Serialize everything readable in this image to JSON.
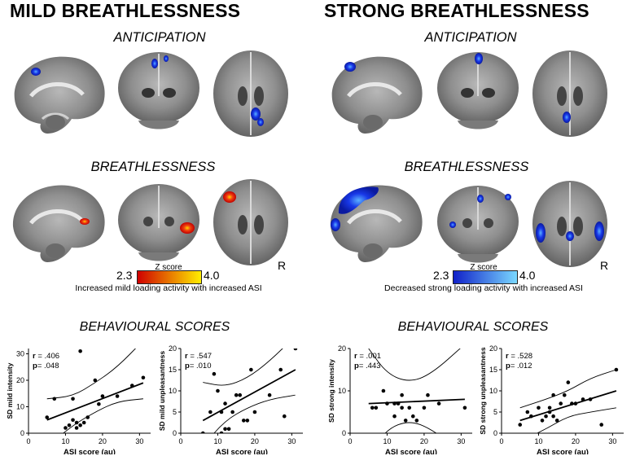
{
  "left": {
    "title": "MILD BREATHLESSNESS",
    "anticipation": "ANTICIPATION",
    "breathlessness": "BREATHLESSNESS",
    "colorbar": {
      "label": "Z score",
      "min": "2.3",
      "max": "4.0",
      "caption": "Increased mild loading activity with increased ASI",
      "from_color": "#d00000",
      "to_color": "#ffee00"
    },
    "r_marker": "R",
    "behavioural": "BEHAVIOURAL SCORES"
  },
  "right": {
    "title": "STRONG BREATHLESSNESS",
    "anticipation": "ANTICIPATION",
    "breathlessness": "BREATHLESSNESS",
    "colorbar": {
      "label": "Z score",
      "min": "2.3",
      "max": "4.0",
      "caption": "Decreased strong loading activity with increased ASI",
      "from_color": "#1020c8",
      "to_color": "#7ad8ff"
    },
    "r_marker": "R",
    "behavioural": "BEHAVIOURAL SCORES"
  },
  "colors": {
    "activation_red": "#e02010",
    "activation_blue": "#1838e8",
    "brain_gray": "#8a8a8a"
  },
  "chart_data": [
    {
      "type": "scatter",
      "xlabel": "ASI score (au)",
      "ylabel": "SD mild intensity",
      "xlim": [
        0,
        33
      ],
      "ylim": [
        0,
        32
      ],
      "xticks": [
        0,
        10,
        20,
        30
      ],
      "yticks": [
        0,
        10,
        20,
        30
      ],
      "r_label": "r",
      "p_label": "p",
      "r_value": "= .406",
      "p_value": "= .048",
      "points": [
        [
          5,
          6
        ],
        [
          7,
          13
        ],
        [
          10,
          2
        ],
        [
          11,
          3
        ],
        [
          12,
          5
        ],
        [
          12,
          13
        ],
        [
          13,
          2
        ],
        [
          13,
          4
        ],
        [
          14,
          31
        ],
        [
          15,
          4
        ],
        [
          16,
          6
        ],
        [
          18,
          20
        ],
        [
          19,
          11
        ],
        [
          20,
          14
        ],
        [
          24,
          14
        ],
        [
          28,
          18
        ],
        [
          31,
          21
        ],
        [
          14,
          3
        ]
      ],
      "fit": [
        [
          5,
          5
        ],
        [
          31,
          19
        ]
      ],
      "band_upper": [
        [
          5,
          13
        ],
        [
          12,
          14
        ],
        [
          18,
          19
        ],
        [
          24,
          25
        ],
        [
          31,
          35
        ]
      ],
      "band_lower": [
        [
          5,
          -5
        ],
        [
          12,
          3
        ],
        [
          18,
          8
        ],
        [
          24,
          12
        ],
        [
          31,
          13
        ]
      ]
    },
    {
      "type": "scatter",
      "xlabel": "ASI score (au)",
      "ylabel": "SD mild unpleasantness",
      "xlim": [
        0,
        33
      ],
      "ylim": [
        0,
        20
      ],
      "xticks": [
        0,
        10,
        20,
        30
      ],
      "yticks": [
        0,
        5,
        10,
        15,
        20
      ],
      "r_label": "r",
      "p_label": "p",
      "r_value": "= .547",
      "p_value": "= .010",
      "points": [
        [
          6,
          0
        ],
        [
          8,
          5
        ],
        [
          9,
          14
        ],
        [
          10,
          10
        ],
        [
          11,
          0
        ],
        [
          11,
          5
        ],
        [
          12,
          1
        ],
        [
          12,
          7
        ],
        [
          13,
          1
        ],
        [
          14,
          5
        ],
        [
          15,
          9
        ],
        [
          16,
          9
        ],
        [
          17,
          3
        ],
        [
          18,
          3
        ],
        [
          19,
          15
        ],
        [
          20,
          5
        ],
        [
          24,
          9
        ],
        [
          27,
          15
        ],
        [
          28,
          4
        ],
        [
          31,
          20
        ]
      ],
      "fit": [
        [
          6,
          3
        ],
        [
          31,
          15
        ]
      ],
      "band_upper": [
        [
          6,
          12
        ],
        [
          12,
          11
        ],
        [
          18,
          13
        ],
        [
          24,
          17
        ],
        [
          31,
          23
        ]
      ],
      "band_lower": [
        [
          6,
          -3
        ],
        [
          12,
          3
        ],
        [
          18,
          6
        ],
        [
          24,
          8
        ],
        [
          31,
          9
        ]
      ]
    },
    {
      "type": "scatter",
      "xlabel": "ASI score (au)",
      "ylabel": "SD strong intensity",
      "xlim": [
        0,
        33
      ],
      "ylim": [
        0,
        20
      ],
      "xticks": [
        0,
        10,
        20,
        30
      ],
      "yticks": [
        0,
        10,
        20
      ],
      "r_label": "r",
      "p_label": "p",
      "r_value": "= .001",
      "p_value": "= .443",
      "points": [
        [
          6,
          6
        ],
        [
          7,
          6
        ],
        [
          9,
          10
        ],
        [
          10,
          7
        ],
        [
          12,
          7
        ],
        [
          12,
          4
        ],
        [
          13,
          7
        ],
        [
          14,
          6
        ],
        [
          15,
          3
        ],
        [
          16,
          6
        ],
        [
          17,
          4
        ],
        [
          18,
          3
        ],
        [
          20,
          6
        ],
        [
          21,
          9
        ],
        [
          24,
          7
        ],
        [
          31,
          6
        ],
        [
          14,
          9
        ]
      ],
      "fit": [
        [
          5,
          7
        ],
        [
          31,
          8
        ]
      ],
      "band_upper": [
        [
          5,
          20
        ],
        [
          10,
          14
        ],
        [
          16,
          12
        ],
        [
          22,
          14
        ],
        [
          31,
          21
        ]
      ],
      "band_lower": [
        [
          5,
          -5
        ],
        [
          10,
          1
        ],
        [
          16,
          3
        ],
        [
          22,
          1
        ],
        [
          31,
          -5
        ]
      ]
    },
    {
      "type": "scatter",
      "xlabel": "ASI score (au)",
      "ylabel": "SD strong unpleasantness",
      "xlim": [
        0,
        33
      ],
      "ylim": [
        0,
        20
      ],
      "xticks": [
        0,
        10,
        20,
        30
      ],
      "yticks": [
        0,
        5,
        10,
        15,
        20
      ],
      "r_label": "r",
      "p_label": "p",
      "r_value": "= .528",
      "p_value": "= .012",
      "points": [
        [
          5,
          2
        ],
        [
          7,
          5
        ],
        [
          8,
          4
        ],
        [
          10,
          6
        ],
        [
          11,
          3
        ],
        [
          12,
          4
        ],
        [
          13,
          5
        ],
        [
          13,
          6
        ],
        [
          14,
          4
        ],
        [
          15,
          3
        ],
        [
          16,
          7
        ],
        [
          17,
          9
        ],
        [
          18,
          12
        ],
        [
          19,
          7
        ],
        [
          20,
          7
        ],
        [
          22,
          8
        ],
        [
          24,
          8
        ],
        [
          27,
          2
        ],
        [
          31,
          15
        ],
        [
          14,
          9
        ]
      ],
      "fit": [
        [
          5,
          3
        ],
        [
          31,
          10
        ]
      ],
      "band_upper": [
        [
          5,
          6
        ],
        [
          12,
          8
        ],
        [
          18,
          10
        ],
        [
          24,
          13
        ],
        [
          31,
          15
        ]
      ],
      "band_lower": [
        [
          5,
          -2
        ],
        [
          12,
          1
        ],
        [
          18,
          4
        ],
        [
          24,
          5
        ],
        [
          31,
          6
        ]
      ]
    }
  ]
}
